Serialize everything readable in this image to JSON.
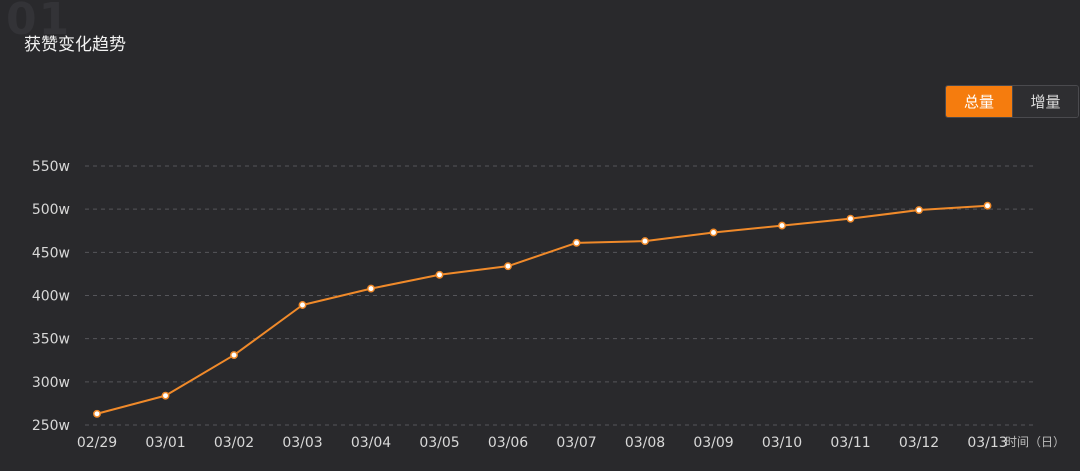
{
  "bg_number": "01",
  "title": "获赞变化趋势",
  "toggle": {
    "total_label": "总量",
    "increment_label": "增量",
    "active": "total"
  },
  "colors": {
    "line": "#f08a2a",
    "point_fill": "#ffffff",
    "grid": "#55555a",
    "accent": "#f57c0e"
  },
  "chart_data": {
    "type": "line",
    "title": "获赞变化趋势",
    "x_unit_label": "时间（日）",
    "categories": [
      "02/29",
      "03/01",
      "03/02",
      "03/03",
      "03/04",
      "03/05",
      "03/06",
      "03/07",
      "03/08",
      "03/09",
      "03/10",
      "03/11",
      "03/12",
      "03/13"
    ],
    "values": [
      263,
      284,
      331,
      389,
      408,
      424,
      434,
      461,
      463,
      473,
      481,
      489,
      499,
      504
    ],
    "y_unit": "w",
    "ylim": [
      250,
      550
    ],
    "yticks": [
      250,
      300,
      350,
      400,
      450,
      500,
      550
    ],
    "grid": true,
    "grid_style": "dashed"
  }
}
